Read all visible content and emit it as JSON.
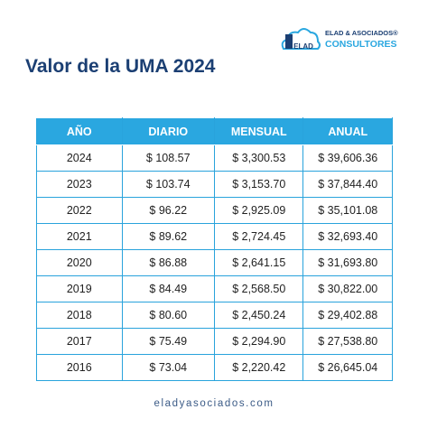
{
  "logo": {
    "icon_text": "ELAD",
    "line1": "ELAD & ASOCIADOS®",
    "line2": "CONSULTORES"
  },
  "title": "Valor de la UMA 2024",
  "table": {
    "header": [
      "AÑO",
      "DIARIO",
      "MENSUAL",
      "ANUAL"
    ],
    "rows": [
      [
        "2024",
        "$ 108.57",
        "$ 3,300.53",
        "$ 39,606.36"
      ],
      [
        "2023",
        "$ 103.74",
        "$ 3,153.70",
        "$ 37,844.40"
      ],
      [
        "2022",
        "$ 96.22",
        "$ 2,925.09",
        "$ 35,101.08"
      ],
      [
        "2021",
        "$ 89.62",
        "$ 2,724.45",
        "$ 32,693.40"
      ],
      [
        "2020",
        "$ 86.88",
        "$ 2,641.15",
        "$ 31,693.80"
      ],
      [
        "2019",
        "$ 84.49",
        "$ 2,568.50",
        "$ 30,822.00"
      ],
      [
        "2018",
        "$ 80.60",
        "$ 2,450.24",
        "$ 29,402.88"
      ],
      [
        "2017",
        "$ 75.49",
        "$ 2,294.90",
        "$ 27,538.80"
      ],
      [
        "2016",
        "$ 73.04",
        "$ 2,220.42",
        "$ 26,645.04"
      ]
    ]
  },
  "footer": "eladyasociados.com"
}
